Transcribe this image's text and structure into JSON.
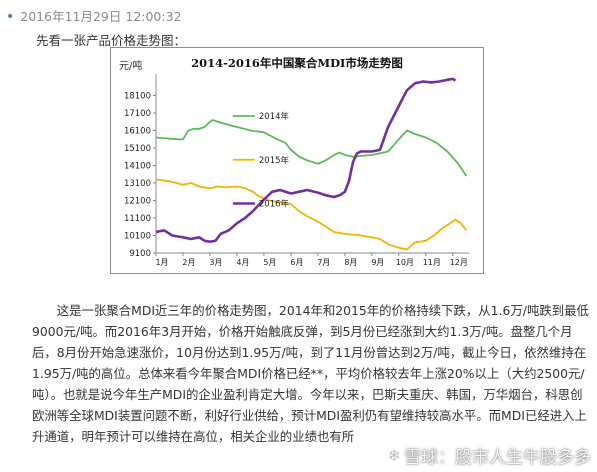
{
  "post": {
    "timestamp": "2016年11月29日 12:00:32",
    "intro": "先看一张产品价格走势图：",
    "paragraph": "这是一张聚合MDI近三年的价格走势图，2014年和2015年的价格持续下跌，从1.6万/吨跌到最低9000元/吨。而2016年3月开始，价格开始触底反弹，到5月份已经涨到大约1.3万/吨。盘整几个月后，8月份开始急速涨价，10月份达到1.95万/吨，到了11月份曾达到2万/吨，截止今日，依然维持在1.95万/吨的高位。总体来看今年聚合MDI价格已经**，平均价格较去年上涨20%以上（大约2500元/吨）。也就是说今年生产MDI的企业盈利肯定大增。今年以来，巴斯夫重庆、韩国，万华烟台，科思创欧洲等全球MDI装置问题不断，利好行业供给，预计MDI盈利仍有望维持较高水平。而MDI已经进入上升通道，明年预计可以维持在高位，相关企业的业绩也有所"
  },
  "watermark": {
    "text": "雪球：股市人生牛股多多",
    "icon": "snowball-icon"
  },
  "chart_data": {
    "type": "line",
    "title": "2014-2016年中国聚合MDI市场走势图",
    "ylabel": "元/吨",
    "ylim": [
      9100,
      19100
    ],
    "yticks": [
      9100,
      10100,
      11100,
      12100,
      13100,
      14100,
      15100,
      16100,
      17100,
      18100
    ],
    "ytick_labels": [
      "9100",
      "10100",
      "11100",
      "12100",
      "13100",
      "14100",
      "15100",
      "16100",
      "17100",
      "18100"
    ],
    "x_categories": [
      "1月",
      "2月",
      "3月",
      "4月",
      "5月",
      "6月",
      "7月",
      "8月",
      "9月",
      "10月",
      "11月",
      "12月"
    ],
    "xlim": [
      1,
      12.6
    ],
    "legend_position": "center-left",
    "grid": false,
    "series": [
      {
        "name": "2014年",
        "color": "#5cb85c",
        "points": [
          [
            1.0,
            15700
          ],
          [
            1.4,
            15650
          ],
          [
            1.8,
            15600
          ],
          [
            2.0,
            15600
          ],
          [
            2.2,
            16100
          ],
          [
            2.4,
            16200
          ],
          [
            2.6,
            16200
          ],
          [
            2.8,
            16300
          ],
          [
            3.0,
            16600
          ],
          [
            3.1,
            16700
          ],
          [
            3.5,
            16500
          ],
          [
            4.0,
            16300
          ],
          [
            4.5,
            16100
          ],
          [
            5.0,
            16000
          ],
          [
            5.5,
            15600
          ],
          [
            5.8,
            15400
          ],
          [
            6.0,
            15000
          ],
          [
            6.3,
            14600
          ],
          [
            6.6,
            14400
          ],
          [
            7.0,
            14200
          ],
          [
            7.3,
            14400
          ],
          [
            7.6,
            14700
          ],
          [
            7.8,
            14850
          ],
          [
            8.0,
            14700
          ],
          [
            8.3,
            14600
          ],
          [
            8.6,
            14650
          ],
          [
            9.0,
            14700
          ],
          [
            9.3,
            14800
          ],
          [
            9.6,
            14900
          ],
          [
            10.0,
            15600
          ],
          [
            10.3,
            16100
          ],
          [
            10.6,
            15900
          ],
          [
            11.0,
            15700
          ],
          [
            11.4,
            15400
          ],
          [
            11.8,
            14900
          ],
          [
            12.2,
            14200
          ],
          [
            12.5,
            13500
          ]
        ]
      },
      {
        "name": "2015年",
        "color": "#f0b400",
        "points": [
          [
            1.0,
            13300
          ],
          [
            1.5,
            13200
          ],
          [
            2.0,
            13000
          ],
          [
            2.3,
            13100
          ],
          [
            2.6,
            12900
          ],
          [
            3.0,
            12800
          ],
          [
            3.3,
            12900
          ],
          [
            3.6,
            12850
          ],
          [
            4.0,
            12900
          ],
          [
            4.3,
            12800
          ],
          [
            4.6,
            12600
          ],
          [
            4.8,
            12350
          ],
          [
            5.2,
            12100
          ],
          [
            5.6,
            12000
          ],
          [
            6.0,
            11900
          ],
          [
            6.3,
            11500
          ],
          [
            6.6,
            11200
          ],
          [
            7.0,
            10900
          ],
          [
            7.3,
            10600
          ],
          [
            7.6,
            10300
          ],
          [
            8.0,
            10200
          ],
          [
            8.3,
            10150
          ],
          [
            8.6,
            10100
          ],
          [
            9.0,
            10000
          ],
          [
            9.3,
            9900
          ],
          [
            9.6,
            9600
          ],
          [
            10.0,
            9400
          ],
          [
            10.3,
            9300
          ],
          [
            10.6,
            9700
          ],
          [
            11.0,
            9800
          ],
          [
            11.3,
            10100
          ],
          [
            11.6,
            10500
          ],
          [
            11.9,
            10800
          ],
          [
            12.1,
            11000
          ],
          [
            12.3,
            10800
          ],
          [
            12.5,
            10400
          ]
        ]
      },
      {
        "name": "2016年",
        "color": "#7030a0",
        "points": [
          [
            1.0,
            10300
          ],
          [
            1.3,
            10400
          ],
          [
            1.6,
            10100
          ],
          [
            2.0,
            10000
          ],
          [
            2.3,
            9900
          ],
          [
            2.6,
            10000
          ],
          [
            2.8,
            9800
          ],
          [
            3.0,
            9750
          ],
          [
            3.2,
            9800
          ],
          [
            3.4,
            10200
          ],
          [
            3.7,
            10400
          ],
          [
            4.0,
            10800
          ],
          [
            4.3,
            11100
          ],
          [
            4.6,
            11500
          ],
          [
            4.9,
            12000
          ],
          [
            5.1,
            12300
          ],
          [
            5.3,
            12600
          ],
          [
            5.6,
            12700
          ],
          [
            6.0,
            12500
          ],
          [
            6.3,
            12600
          ],
          [
            6.6,
            12700
          ],
          [
            7.0,
            12550
          ],
          [
            7.3,
            12400
          ],
          [
            7.6,
            12300
          ],
          [
            7.8,
            12400
          ],
          [
            8.0,
            12600
          ],
          [
            8.15,
            13200
          ],
          [
            8.3,
            14300
          ],
          [
            8.45,
            14800
          ],
          [
            8.6,
            14900
          ],
          [
            9.0,
            14900
          ],
          [
            9.3,
            15000
          ],
          [
            9.6,
            16300
          ],
          [
            10.0,
            17500
          ],
          [
            10.3,
            18400
          ],
          [
            10.6,
            18800
          ],
          [
            10.9,
            18900
          ],
          [
            11.2,
            18850
          ],
          [
            11.5,
            18900
          ],
          [
            11.8,
            19000
          ],
          [
            12.0,
            19050
          ],
          [
            12.1,
            18950
          ]
        ]
      }
    ]
  }
}
